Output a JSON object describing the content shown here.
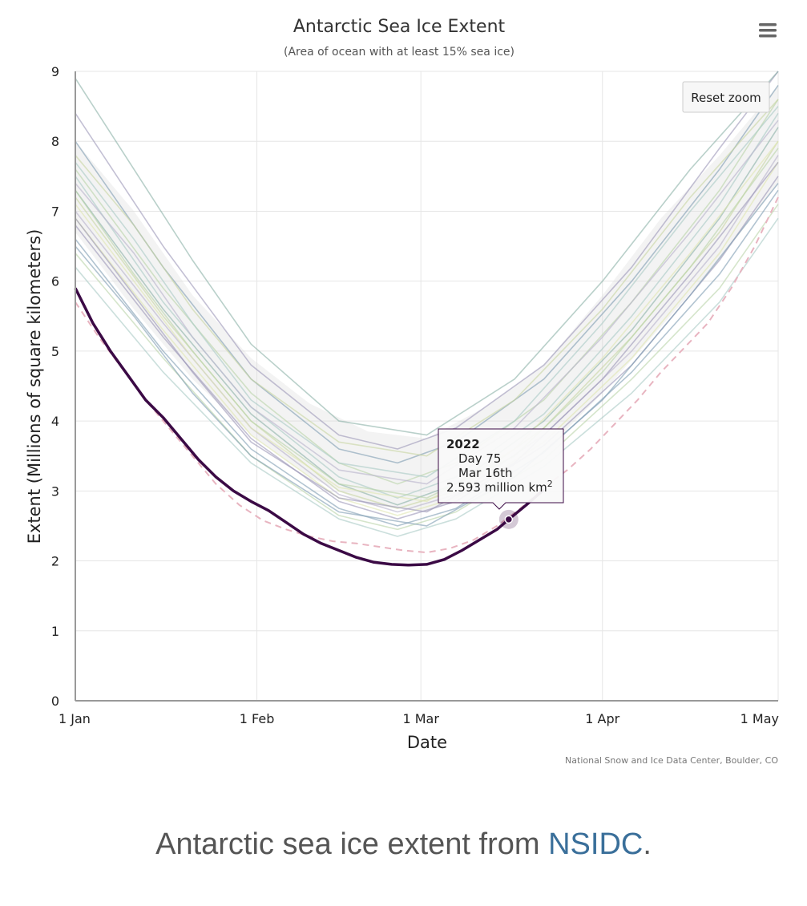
{
  "chart_data": {
    "type": "line",
    "title": "Antarctic Sea Ice Extent",
    "subtitle": "(Area of ocean with at least 15% sea ice)",
    "xlabel": "Date",
    "ylabel": "Extent (Millions of square kilometers)",
    "x_unit": "day of year",
    "xlim": [
      1,
      121
    ],
    "ylim": [
      0,
      9
    ],
    "y_ticks": [
      "0",
      "1",
      "2",
      "3",
      "4",
      "5",
      "6",
      "7",
      "8",
      "9"
    ],
    "x_ticks": [
      {
        "day": 1,
        "label": "1 Jan"
      },
      {
        "day": 32,
        "label": "1 Feb"
      },
      {
        "day": 60,
        "label": "1 Mar"
      },
      {
        "day": 91,
        "label": "1 Apr"
      },
      {
        "day": 121,
        "label": "1 May"
      }
    ],
    "grid": true,
    "legend": "none",
    "credit": "National Snow and Ice Data Center, Boulder, CO",
    "reset_zoom_label": "Reset zoom",
    "menu_icon": "hamburger-menu-icon",
    "highlight": {
      "name": "2022",
      "color": "#3b0a45",
      "x": [
        1,
        4,
        7,
        10,
        13,
        16,
        19,
        22,
        25,
        28,
        31,
        34,
        37,
        40,
        43,
        46,
        49,
        52,
        55,
        58,
        61,
        64,
        67,
        70,
        73,
        75,
        78,
        81
      ],
      "y": [
        5.9,
        5.4,
        5.0,
        4.65,
        4.3,
        4.05,
        3.75,
        3.45,
        3.2,
        3.0,
        2.85,
        2.72,
        2.55,
        2.38,
        2.25,
        2.15,
        2.05,
        1.98,
        1.95,
        1.94,
        1.95,
        2.02,
        2.15,
        2.3,
        2.45,
        2.593,
        2.8,
        3.02
      ]
    },
    "dashed": {
      "color": "#e8b4c0",
      "x": [
        1,
        5,
        9,
        13,
        17,
        21,
        25,
        29,
        33,
        37,
        41,
        45,
        49,
        53,
        57,
        61,
        65,
        69,
        73,
        77,
        81,
        85,
        89,
        93,
        97,
        101,
        105,
        109,
        113,
        117,
        121
      ],
      "y": [
        5.7,
        5.2,
        4.75,
        4.3,
        3.9,
        3.5,
        3.1,
        2.8,
        2.58,
        2.45,
        2.35,
        2.28,
        2.25,
        2.2,
        2.15,
        2.12,
        2.18,
        2.3,
        2.5,
        2.75,
        3.05,
        3.3,
        3.6,
        3.95,
        4.3,
        4.7,
        5.05,
        5.4,
        5.9,
        6.5,
        7.2
      ]
    },
    "envelope": {
      "color": "#dedede",
      "x": [
        1,
        11,
        21,
        31,
        41,
        51,
        61,
        71,
        81,
        91,
        101,
        111,
        121
      ],
      "upper": [
        8.0,
        7.0,
        5.8,
        4.9,
        4.25,
        3.85,
        3.75,
        4.2,
        4.8,
        5.8,
        6.9,
        7.8,
        8.8
      ],
      "lower": [
        6.7,
        5.6,
        4.6,
        3.8,
        3.2,
        2.8,
        2.7,
        3.0,
        3.55,
        4.4,
        5.35,
        6.3,
        7.4
      ]
    },
    "background_series_colors": [
      "#9b96b8",
      "#7e9db2",
      "#b9d3a8",
      "#a9c9c4",
      "#8ab0a6",
      "#c8d6a2",
      "#b7b3cc",
      "#e0e6b0"
    ],
    "background_series": [
      {
        "x": [
          1,
          16,
          31,
          46,
          56,
          66,
          81,
          96,
          111,
          121
        ],
        "y": [
          8.4,
          6.5,
          4.8,
          3.8,
          3.6,
          3.9,
          4.8,
          6.2,
          7.9,
          9.0
        ]
      },
      {
        "x": [
          1,
          16,
          31,
          46,
          56,
          66,
          81,
          96,
          111,
          121
        ],
        "y": [
          8.0,
          6.2,
          4.6,
          3.6,
          3.4,
          3.7,
          4.6,
          6.0,
          7.6,
          8.8
        ]
      },
      {
        "x": [
          1,
          16,
          31,
          46,
          56,
          66,
          81,
          96,
          111,
          121
        ],
        "y": [
          7.6,
          5.9,
          4.4,
          3.4,
          3.1,
          3.4,
          4.3,
          5.7,
          7.3,
          8.6
        ]
      },
      {
        "x": [
          1,
          16,
          31,
          46,
          56,
          66,
          81,
          96,
          111,
          121
        ],
        "y": [
          7.5,
          5.7,
          4.2,
          3.2,
          2.9,
          3.2,
          4.1,
          5.5,
          7.1,
          8.4
        ]
      },
      {
        "x": [
          1,
          16,
          31,
          46,
          56,
          66,
          81,
          96,
          111,
          121
        ],
        "y": [
          7.3,
          5.6,
          4.1,
          3.1,
          2.8,
          3.1,
          4.0,
          5.3,
          6.9,
          8.2
        ]
      },
      {
        "x": [
          1,
          16,
          31,
          46,
          56,
          66,
          81,
          96,
          111,
          121
        ],
        "y": [
          7.2,
          5.5,
          4.0,
          3.0,
          2.75,
          3.0,
          3.9,
          5.2,
          6.7,
          8.0
        ]
      },
      {
        "x": [
          1,
          16,
          31,
          46,
          56,
          66,
          81,
          96,
          111,
          121
        ],
        "y": [
          7.0,
          5.4,
          3.9,
          2.95,
          2.7,
          2.95,
          3.8,
          5.0,
          6.5,
          7.8
        ]
      },
      {
        "x": [
          1,
          16,
          31,
          46,
          56,
          66,
          81,
          96,
          111,
          121
        ],
        "y": [
          6.9,
          5.3,
          3.8,
          2.9,
          2.65,
          2.9,
          3.7,
          4.9,
          6.4,
          7.7
        ]
      },
      {
        "x": [
          1,
          16,
          31,
          46,
          56,
          66,
          81,
          96,
          111,
          121
        ],
        "y": [
          6.8,
          5.2,
          3.75,
          2.85,
          2.6,
          2.85,
          3.65,
          4.8,
          6.3,
          7.5
        ]
      },
      {
        "x": [
          1,
          16,
          31,
          46,
          56,
          66,
          81,
          96,
          111,
          121
        ],
        "y": [
          6.6,
          5.0,
          3.6,
          2.75,
          2.5,
          2.75,
          3.55,
          4.7,
          6.1,
          7.3
        ]
      },
      {
        "x": [
          1,
          16,
          31,
          46,
          56,
          66,
          81,
          96,
          111,
          121
        ],
        "y": [
          6.4,
          4.9,
          3.5,
          2.65,
          2.45,
          2.7,
          3.45,
          4.6,
          5.9,
          7.1
        ]
      },
      {
        "x": [
          1,
          16,
          31,
          46,
          56,
          66,
          81,
          96,
          111,
          121
        ],
        "y": [
          6.2,
          4.7,
          3.4,
          2.6,
          2.35,
          2.6,
          3.35,
          4.4,
          5.7,
          6.9
        ]
      },
      {
        "x": [
          1,
          11,
          21,
          31,
          46,
          61,
          76,
          91,
          106,
          121
        ],
        "y": [
          8.9,
          7.6,
          6.3,
          5.1,
          4.0,
          3.8,
          4.6,
          6.0,
          7.6,
          9.0
        ]
      },
      {
        "x": [
          1,
          11,
          21,
          31,
          46,
          61,
          76,
          91,
          106,
          121
        ],
        "y": [
          7.8,
          6.8,
          5.6,
          4.6,
          3.7,
          3.5,
          4.3,
          5.6,
          7.2,
          8.6
        ]
      },
      {
        "x": [
          1,
          11,
          21,
          31,
          46,
          61,
          76,
          91,
          106,
          121
        ],
        "y": [
          7.4,
          6.4,
          5.2,
          4.2,
          3.3,
          3.1,
          3.9,
          5.2,
          6.7,
          8.3
        ]
      },
      {
        "x": [
          1,
          11,
          21,
          31,
          46,
          61,
          76,
          91,
          106,
          121
        ],
        "y": [
          7.1,
          6.0,
          4.9,
          3.9,
          3.05,
          2.85,
          3.6,
          4.9,
          6.4,
          8.0
        ]
      },
      {
        "x": [
          1,
          11,
          21,
          31,
          46,
          61,
          76,
          91,
          106,
          121
        ],
        "y": [
          6.9,
          5.8,
          4.7,
          3.7,
          2.9,
          2.7,
          3.4,
          4.6,
          6.1,
          7.7
        ]
      },
      {
        "x": [
          1,
          11,
          21,
          31,
          46,
          61,
          76,
          91,
          106,
          121
        ],
        "y": [
          6.5,
          5.5,
          4.4,
          3.5,
          2.7,
          2.5,
          3.2,
          4.3,
          5.8,
          7.4
        ]
      },
      {
        "x": [
          1,
          11,
          21,
          31,
          46,
          61,
          76,
          91,
          106,
          121
        ],
        "y": [
          7.3,
          6.1,
          5.0,
          4.0,
          3.1,
          2.9,
          3.5,
          4.7,
          6.2,
          7.9
        ]
      },
      {
        "x": [
          1,
          11,
          21,
          31,
          46,
          61,
          76,
          91,
          106,
          121
        ],
        "y": [
          7.7,
          6.6,
          5.4,
          4.3,
          3.4,
          3.2,
          4.0,
          5.4,
          7.0,
          8.5
        ]
      }
    ],
    "tooltip": {
      "year": "2022",
      "day": "Day 75",
      "date": "Mar 16th",
      "value": "2.593 million km",
      "unit_sup": "2"
    }
  },
  "caption": {
    "text": "Antarctic sea ice extent from ",
    "link": "NSIDC",
    "end": "."
  }
}
